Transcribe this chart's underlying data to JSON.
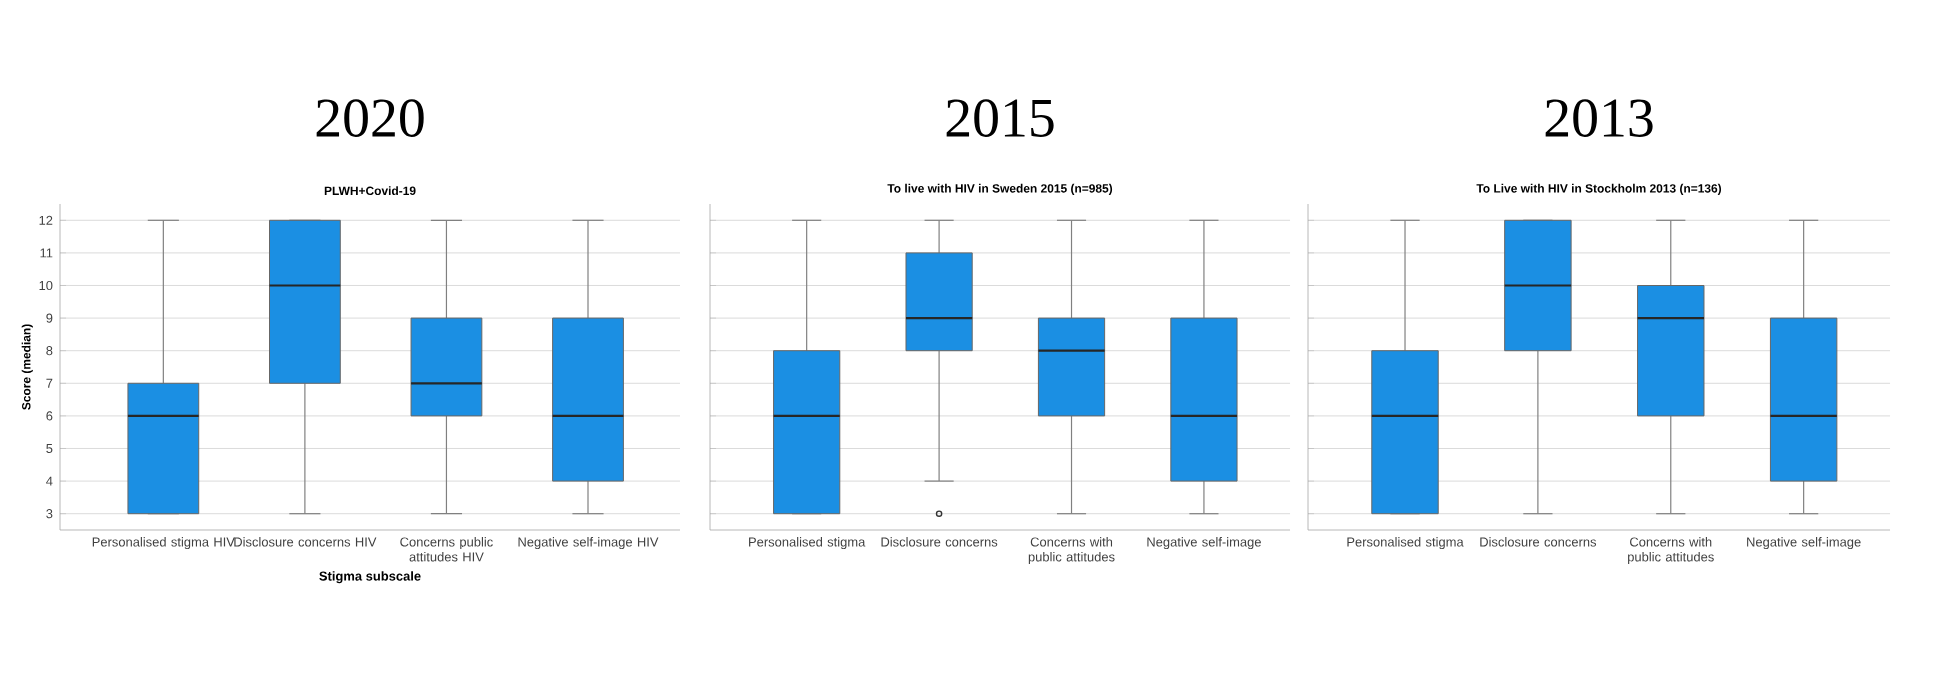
{
  "chart_data": [
    {
      "type": "box",
      "title": "2020",
      "subtitle": "PLWH+Covid-19",
      "xlabel": "Stigma subscale",
      "ylabel": "Score (median)",
      "color": "#1b8fe3",
      "grid": "y",
      "ylim": [
        2.5,
        12.5
      ],
      "yticks": [
        3,
        4,
        5,
        6,
        7,
        8,
        9,
        10,
        11,
        12
      ],
      "categories": [
        "Personalised stigma HIV",
        "Disclosure concerns HIV",
        "Concerns public attitudes HIV",
        "Negative self-image HIV"
      ],
      "boxes": [
        {
          "low": 3,
          "q1": 3,
          "median": 6,
          "q3": 7,
          "high": 12
        },
        {
          "low": 3,
          "q1": 7,
          "median": 10,
          "q3": 12,
          "high": 12
        },
        {
          "low": 3,
          "q1": 6,
          "median": 7,
          "q3": 9,
          "high": 12
        },
        {
          "low": 3,
          "q1": 4,
          "median": 6,
          "q3": 9,
          "high": 12
        }
      ]
    },
    {
      "type": "box",
      "title": "2015",
      "subtitle": "To live with HIV in Sweden 2015 (n=985)",
      "color": "#1b8fe3",
      "grid": "y",
      "tick_labels": "x",
      "ylim": [
        2.5,
        12.5
      ],
      "yticks": [
        3,
        4,
        5,
        6,
        7,
        8,
        9,
        10,
        11,
        12
      ],
      "categories": [
        "Personalised stigma",
        "Disclosure concerns",
        "Concerns with public attitudes",
        "Negative self-image"
      ],
      "boxes": [
        {
          "low": 3,
          "q1": 3,
          "median": 6,
          "q3": 8,
          "high": 12
        },
        {
          "low": 4,
          "q1": 8,
          "median": 9,
          "q3": 11,
          "high": 12,
          "outliers": [
            3
          ]
        },
        {
          "low": 3,
          "q1": 6,
          "median": 8,
          "q3": 9,
          "high": 12
        },
        {
          "low": 3,
          "q1": 4,
          "median": 6,
          "q3": 9,
          "high": 12
        }
      ]
    },
    {
      "type": "box",
      "title": "2013",
      "subtitle": "To Live with HIV in Stockholm 2013 (n=136)",
      "color": "#1b8fe3",
      "grid": "y",
      "tick_labels": "x",
      "ylim": [
        2.5,
        12.5
      ],
      "yticks": [
        3,
        4,
        5,
        6,
        7,
        8,
        9,
        10,
        11,
        12
      ],
      "categories": [
        "Personalised stigma",
        "Disclosure concerns",
        "Concerns with public attitudes",
        "Negative self-image"
      ],
      "boxes": [
        {
          "low": 3,
          "q1": 3,
          "median": 6,
          "q3": 8,
          "high": 12
        },
        {
          "low": 3,
          "q1": 8,
          "median": 10,
          "q3": 12,
          "high": 12
        },
        {
          "low": 3,
          "q1": 6,
          "median": 9,
          "q3": 10,
          "high": 12
        },
        {
          "low": 3,
          "q1": 4,
          "median": 6,
          "q3": 9,
          "high": 12
        }
      ]
    }
  ]
}
